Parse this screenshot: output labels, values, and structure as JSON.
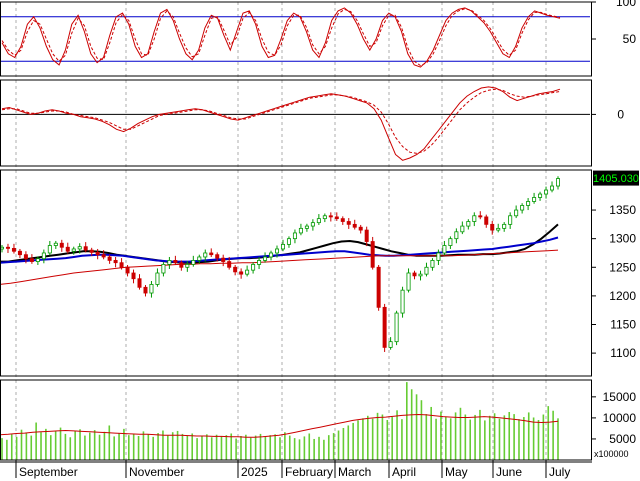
{
  "chart_data": [
    {
      "type": "line",
      "panel": "stochastic oscillator",
      "y_ticks": [
        "100",
        "50"
      ],
      "ylim": [
        0,
        100
      ],
      "reference_lines": [
        80,
        20
      ],
      "series": [
        {
          "color": "#cc0000",
          "style": "solid",
          "values": [
            45,
            30,
            25,
            40,
            70,
            80,
            65,
            40,
            22,
            15,
            35,
            70,
            82,
            60,
            30,
            18,
            25,
            55,
            80,
            85,
            70,
            40,
            25,
            30,
            60,
            85,
            90,
            75,
            50,
            30,
            22,
            35,
            65,
            82,
            78,
            55,
            35,
            60,
            85,
            88,
            70,
            40,
            25,
            28,
            50,
            75,
            85,
            80,
            60,
            35,
            25,
            45,
            75,
            88,
            92,
            85,
            70,
            50,
            35,
            50,
            75,
            85,
            80,
            60,
            30,
            15,
            12,
            20,
            35,
            55,
            75,
            85,
            90,
            92,
            88,
            80,
            72,
            60,
            45,
            30,
            25,
            40,
            65,
            80,
            88,
            85,
            82,
            80,
            78
          ]
        },
        {
          "color": "#cc0000",
          "style": "dashed",
          "values": [
            48,
            35,
            28,
            35,
            60,
            75,
            70,
            50,
            30,
            20,
            28,
            58,
            78,
            68,
            40,
            24,
            22,
            45,
            72,
            83,
            75,
            50,
            30,
            28,
            50,
            78,
            88,
            80,
            58,
            38,
            26,
            30,
            55,
            78,
            80,
            62,
            42,
            52,
            78,
            86,
            75,
            50,
            32,
            28,
            42,
            68,
            82,
            82,
            66,
            42,
            30,
            40,
            65,
            84,
            90,
            87,
            75,
            57,
            40,
            45,
            68,
            82,
            82,
            66,
            38,
            20,
            14,
            18,
            30,
            48,
            68,
            82,
            88,
            91,
            89,
            82,
            75,
            64,
            50,
            36,
            28,
            35,
            58,
            76,
            86,
            86,
            83,
            81,
            79
          ]
        }
      ]
    },
    {
      "type": "line",
      "panel": "MACD",
      "y_ticks": [
        "0"
      ],
      "ylim": [
        -45,
        30
      ],
      "series": [
        {
          "color": "#cc0000",
          "style": "solid",
          "values": [
            5,
            6,
            4,
            2,
            0,
            1,
            3,
            4,
            3,
            1,
            0,
            -2,
            -3,
            -4,
            -6,
            -9,
            -13,
            -15,
            -12,
            -8,
            -5,
            -2,
            0,
            1,
            2,
            3,
            4,
            5,
            4,
            2,
            0,
            -2,
            -4,
            -5,
            -3,
            -1,
            1,
            3,
            5,
            7,
            9,
            11,
            13,
            15,
            16,
            17,
            18,
            17,
            16,
            14,
            12,
            10,
            5,
            -5,
            -20,
            -35,
            -40,
            -38,
            -35,
            -30,
            -22,
            -14,
            -6,
            2,
            10,
            16,
            20,
            23,
            24,
            23,
            20,
            15,
            12,
            14,
            16,
            18,
            19,
            20,
            22
          ]
        },
        {
          "color": "#cc0000",
          "style": "dashed",
          "values": [
            4,
            5,
            5,
            3,
            1,
            1,
            2,
            3,
            3,
            2,
            0,
            -1,
            -2,
            -3,
            -5,
            -7,
            -10,
            -13,
            -13,
            -10,
            -7,
            -4,
            -1,
            0,
            1,
            2,
            3,
            4,
            4,
            3,
            1,
            -1,
            -3,
            -4,
            -4,
            -2,
            0,
            2,
            4,
            6,
            8,
            10,
            12,
            14,
            15,
            16,
            17,
            17,
            16,
            15,
            13,
            11,
            8,
            2,
            -8,
            -20,
            -28,
            -33,
            -34,
            -32,
            -27,
            -20,
            -12,
            -4,
            4,
            10,
            15,
            19,
            21,
            22,
            21,
            18,
            16,
            15,
            16,
            17,
            18,
            19,
            20
          ]
        }
      ]
    },
    {
      "type": "candlestick",
      "panel": "price",
      "y_ticks": [
        "1350",
        "1300",
        "1250",
        "1200",
        "1150",
        "1100"
      ],
      "ylim": [
        1060,
        1420
      ],
      "last_value_label": "1405.030",
      "close": [
        1285,
        1283,
        1278,
        1272,
        1265,
        1260,
        1265,
        1275,
        1288,
        1292,
        1285,
        1278,
        1282,
        1286,
        1280,
        1276,
        1272,
        1268,
        1262,
        1258,
        1250,
        1240,
        1230,
        1215,
        1205,
        1220,
        1240,
        1255,
        1262,
        1258,
        1250,
        1255,
        1262,
        1268,
        1275,
        1272,
        1266,
        1260,
        1250,
        1242,
        1238,
        1245,
        1255,
        1262,
        1268,
        1275,
        1282,
        1290,
        1300,
        1310,
        1318,
        1322,
        1328,
        1335,
        1340,
        1338,
        1335,
        1330,
        1325,
        1320,
        1315,
        1295,
        1250,
        1180,
        1110,
        1120,
        1170,
        1210,
        1240,
        1235,
        1238,
        1250,
        1262,
        1275,
        1288,
        1300,
        1312,
        1322,
        1330,
        1340,
        1338,
        1325,
        1315,
        1318,
        1325,
        1340,
        1350,
        1358,
        1365,
        1372,
        1378,
        1385,
        1392,
        1405
      ],
      "overlays": [
        {
          "color": "#000000",
          "name": "",
          "values": [
            1260,
            1260,
            1262,
            1264,
            1266,
            1268,
            1270,
            1272,
            1274,
            1276,
            1278,
            1278,
            1277,
            1275,
            1272,
            1270,
            1268,
            1266,
            1264,
            1262,
            1260,
            1259,
            1258,
            1258,
            1259,
            1260,
            1262,
            1264,
            1265,
            1266,
            1266,
            1267,
            1268,
            1270,
            1272,
            1274,
            1276,
            1280,
            1284,
            1288,
            1292,
            1295,
            1296,
            1294,
            1290,
            1286,
            1282,
            1278,
            1275,
            1272,
            1270,
            1270,
            1270,
            1270,
            1271,
            1272,
            1272,
            1272,
            1273,
            1273,
            1274,
            1276,
            1278,
            1282,
            1290,
            1300,
            1312,
            1325
          ]
        },
        {
          "color": "#0000cc",
          "name": "",
          "values": [
            1258,
            1259,
            1260,
            1261,
            1262,
            1263,
            1264,
            1265,
            1266,
            1268,
            1270,
            1271,
            1272,
            1272,
            1271,
            1270,
            1268,
            1266,
            1264,
            1262,
            1261,
            1260,
            1260,
            1260,
            1261,
            1262,
            1263,
            1264,
            1265,
            1266,
            1267,
            1268,
            1269,
            1270,
            1271,
            1272,
            1273,
            1274,
            1275,
            1276,
            1277,
            1278,
            1278,
            1276,
            1274,
            1272,
            1271,
            1270,
            1270,
            1271,
            1272,
            1273,
            1274,
            1275,
            1276,
            1277,
            1278,
            1279,
            1280,
            1281,
            1282,
            1284,
            1286,
            1288,
            1290,
            1292,
            1295,
            1298,
            1302
          ]
        },
        {
          "color": "#cc0000",
          "name": "",
          "values": [
            1220,
            1222,
            1225,
            1228,
            1231,
            1234,
            1237,
            1240,
            1242,
            1244,
            1246,
            1248,
            1250,
            1251,
            1252,
            1253,
            1254,
            1255,
            1255,
            1256,
            1256,
            1257,
            1257,
            1258,
            1258,
            1259,
            1260,
            1261,
            1262,
            1263,
            1264,
            1265,
            1266,
            1267,
            1268,
            1269,
            1270,
            1270,
            1270,
            1270,
            1270,
            1270,
            1270,
            1270,
            1271,
            1272,
            1273,
            1274,
            1275,
            1276,
            1277,
            1278,
            1279,
            1280
          ]
        }
      ]
    },
    {
      "type": "bar",
      "panel": "volume",
      "y_ticks": [
        "15000",
        "10000",
        "5000"
      ],
      "y_unit_label": "x100000",
      "ylim": [
        0,
        19000
      ],
      "values": [
        5200,
        4800,
        6100,
        5500,
        7200,
        6400,
        5800,
        8900,
        6600,
        7400,
        5900,
        6800,
        7700,
        6200,
        5400,
        6900,
        7300,
        5800,
        6500,
        7100,
        6000,
        6700,
        8200,
        5600,
        6300,
        7400,
        5900,
        6200,
        5700,
        6800,
        6100,
        5500,
        6400,
        7000,
        5800,
        6600,
        6900,
        6200,
        5700,
        6300,
        5200,
        5800,
        6100,
        5400,
        6000,
        5600,
        5900,
        6300,
        5100,
        5700,
        6000,
        5300,
        5800,
        6200,
        5500,
        5900,
        6100,
        5400,
        6600,
        5800,
        5200,
        4900,
        5600,
        6300,
        5000,
        5500,
        4800,
        5900,
        6400,
        7000,
        7600,
        8200,
        8800,
        9400,
        9900,
        10500,
        9800,
        11200,
        10800,
        9500,
        10200,
        11800,
        9700,
        18500,
        16800,
        15600,
        14200,
        10900,
        12600,
        9800,
        11500,
        10200,
        9900,
        11300,
        12400,
        10800,
        9600,
        10700,
        11900,
        9400,
        10500,
        11100,
        9800,
        10600,
        11400,
        10900,
        9700,
        10200,
        11300,
        10100,
        9500,
        10800,
        12800,
        11700,
        9900
      ],
      "overlays": [
        {
          "color": "#cc0000",
          "name": "",
          "values": [
            6000,
            6100,
            6300,
            6400,
            6600,
            6700,
            6800,
            6900,
            7000,
            6900,
            6800,
            6700,
            6600,
            6500,
            6400,
            6300,
            6200,
            6100,
            6100,
            6000,
            5900,
            5900,
            5900,
            5800,
            5700,
            5700,
            5600,
            5600,
            5500,
            5500,
            5400,
            5400,
            5500,
            5700,
            5900,
            6200,
            6600,
            7000,
            7400,
            7800,
            8200,
            8600,
            9000,
            9400,
            9700,
            9900,
            10100,
            10200,
            10400,
            10600,
            10700,
            10800,
            10700,
            10500,
            10300,
            10200,
            10100,
            10100,
            10200,
            10300,
            10200,
            10000,
            9800,
            9600,
            9300,
            9000,
            8900,
            9000,
            9200
          ]
        }
      ]
    }
  ],
  "x_axis": {
    "months": [
      "September",
      "November",
      "2025",
      "February",
      "March",
      "April",
      "May",
      "June",
      "July"
    ]
  }
}
